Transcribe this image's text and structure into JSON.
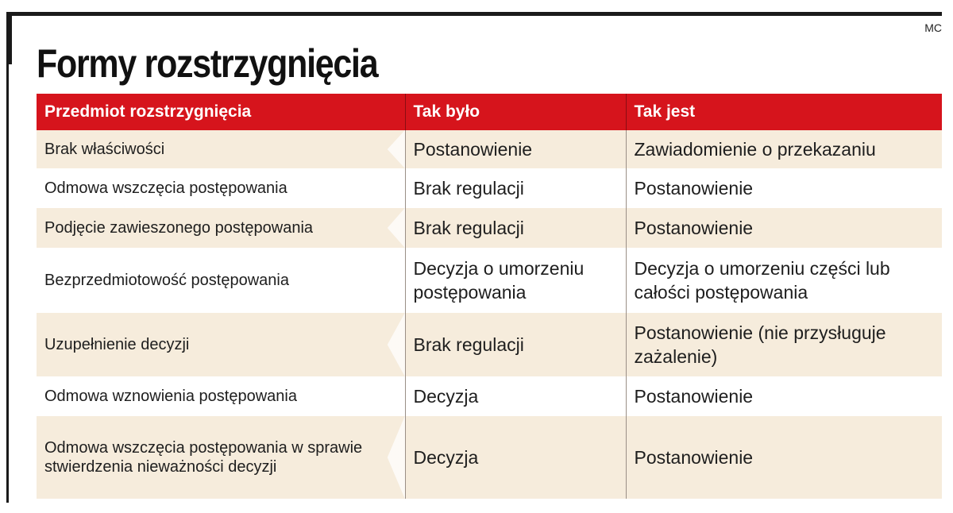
{
  "credit": "MC",
  "title": "Formy rozstrzygnięcia",
  "table": {
    "headers": [
      "Przedmiot rozstrzygnięcia",
      "Tak było",
      "Tak jest"
    ],
    "rows": [
      [
        "Brak właściwości",
        "Postanowienie",
        "Zawiadomienie o przekazaniu"
      ],
      [
        "Odmowa wszczęcia postępowania",
        "Brak regulacji",
        "Postanowienie"
      ],
      [
        "Podjęcie zawieszonego postępowania",
        "Brak regulacji",
        "Postanowienie"
      ],
      [
        "Bezprzedmiotowość postępowania",
        "Decyzja o umorzeniu postępowania",
        "Decyzja o umorzeniu części lub całości postępowania"
      ],
      [
        "Uzupełnienie decyzji",
        "Brak regulacji",
        "Postanowienie (nie przysługuje zażalenie)"
      ],
      [
        "Odmowa wznowienia postępowania",
        "Decyzja",
        "Postanowienie"
      ],
      [
        "Odmowa wszczęcia postępowania w sprawie stwierdzenia nieważności decyzji",
        "Decyzja",
        "Postanowienie"
      ]
    ]
  },
  "colors": {
    "header_red": "#d6141c",
    "row_shade": "#f6ecdc",
    "frame": "#1a1a1a"
  }
}
